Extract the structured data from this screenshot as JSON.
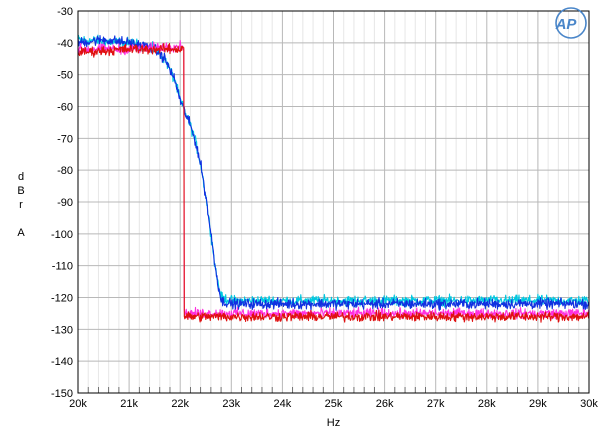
{
  "chart_data": {
    "type": "line",
    "xlabel": "Hz",
    "ylabel_lines": [
      "d",
      "B",
      "r",
      "",
      "A"
    ],
    "xlim": [
      20000,
      30000
    ],
    "ylim": [
      -150,
      -30
    ],
    "x_ticks": [
      20000,
      21000,
      22000,
      23000,
      24000,
      25000,
      26000,
      27000,
      28000,
      29000,
      30000
    ],
    "x_tick_labels": [
      "20k",
      "21k",
      "22k",
      "23k",
      "24k",
      "25k",
      "26k",
      "27k",
      "28k",
      "29k",
      "30k"
    ],
    "y_ticks": [
      -30,
      -40,
      -50,
      -60,
      -70,
      -80,
      -90,
      -100,
      -110,
      -120,
      -130,
      -140,
      -150
    ],
    "y_tick_labels": [
      "-30",
      "-40",
      "-50",
      "-60",
      "-70",
      "-80",
      "-90",
      "-100",
      "-110",
      "-120",
      "-130",
      "-140",
      "-150"
    ],
    "grid": true,
    "logo": "AP",
    "series": [
      {
        "color": "#00c8e0",
        "x": [
          20000,
          20500,
          21000,
          21300,
          21500,
          21700,
          21900,
          22000,
          22100,
          22200,
          22300,
          22400,
          22500,
          22600,
          22700,
          22800,
          23000,
          24000,
          25000,
          26000,
          27000,
          28000,
          29000,
          30000
        ],
        "y": [
          -39,
          -39.5,
          -40,
          -41,
          -42,
          -45,
          -52,
          -58,
          -62,
          -66,
          -71,
          -78,
          -88,
          -100,
          -112,
          -120,
          -121,
          -121,
          -121,
          -121,
          -121,
          -121,
          -121,
          -121
        ]
      },
      {
        "color": "#1030e0",
        "x": [
          20000,
          20500,
          21000,
          21300,
          21500,
          21700,
          21900,
          22000,
          22100,
          22200,
          22300,
          22400,
          22500,
          22600,
          22700,
          22800,
          23000,
          24000,
          25000,
          26000,
          27000,
          28000,
          29000,
          30000
        ],
        "y": [
          -40,
          -39,
          -40,
          -41,
          -42,
          -45,
          -52,
          -58,
          -62,
          -66,
          -71,
          -78,
          -88,
          -100,
          -112,
          -121,
          -122,
          -122,
          -122,
          -122,
          -122,
          -122,
          -122,
          -122
        ]
      },
      {
        "color": "#ff30e0",
        "x": [
          20000,
          21000,
          22000,
          22070,
          22080,
          23000,
          24000,
          25000,
          26000,
          27000,
          28000,
          29000,
          30000
        ],
        "y": [
          -42,
          -42,
          -41,
          -41,
          -125,
          -125,
          -125,
          -125,
          -125,
          -125,
          -125,
          -125,
          -125
        ]
      },
      {
        "color": "#e01010",
        "x": [
          20000,
          21000,
          22000,
          22070,
          22080,
          23000,
          24000,
          25000,
          26000,
          27000,
          28000,
          29000,
          30000
        ],
        "y": [
          -43,
          -42,
          -42,
          -41,
          -126,
          -126,
          -126,
          -126,
          -126,
          -126,
          -126,
          -126,
          -126
        ]
      }
    ]
  }
}
